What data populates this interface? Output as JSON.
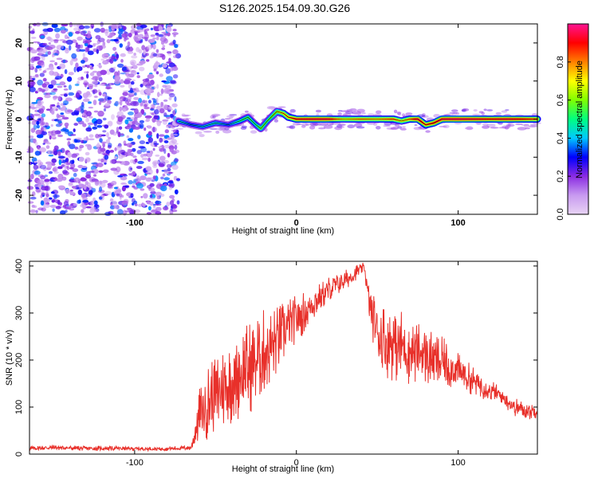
{
  "figure": {
    "title": "S126.2025.154.09.30.G26"
  },
  "chart_data": [
    {
      "type": "heatmap",
      "xlabel": "Height of straight line (km)",
      "ylabel": "Frequency (Hz)",
      "xlim": [
        -165,
        149
      ],
      "ylim": [
        -25,
        25
      ],
      "xticks": [
        -100,
        0,
        100
      ],
      "yticks": [
        -20,
        -10,
        0,
        10,
        20
      ],
      "noise_region": {
        "x_range": [
          -165,
          -73
        ],
        "description_level": "scattered low-to-moderate amplitude"
      },
      "ridge_start_x": -73,
      "ridge": {
        "x": [
          -73,
          -65,
          -58,
          -50,
          -42,
          -35,
          -30,
          -25,
          -22,
          -18,
          -12,
          -8,
          -5,
          0,
          10,
          20,
          30,
          40,
          50,
          60,
          65,
          70,
          75,
          80,
          85,
          90,
          100,
          110,
          120,
          130,
          140,
          149
        ],
        "y": [
          -0.5,
          -1.5,
          -2.0,
          -1.0,
          -1.5,
          -0.5,
          0.5,
          -1.5,
          -2.5,
          -0.5,
          2.0,
          1.5,
          0.5,
          0.0,
          0.0,
          0.0,
          0.0,
          0.0,
          0.0,
          0.0,
          -0.5,
          0.0,
          0.0,
          -1.5,
          -1.0,
          0.0,
          0.0,
          0.0,
          0.0,
          0.0,
          0.0,
          0.0
        ],
        "amp": [
          0.45,
          0.35,
          0.4,
          0.45,
          0.35,
          0.5,
          0.55,
          0.5,
          0.6,
          0.55,
          0.65,
          0.75,
          0.8,
          0.9,
          0.95,
          0.95,
          0.7,
          0.8,
          0.75,
          0.85,
          0.7,
          0.8,
          0.95,
          0.85,
          0.9,
          0.95,
          0.98,
          0.95,
          0.9,
          0.95,
          0.9,
          0.85
        ]
      },
      "colorbar": {
        "label": "Normalized spectral amplitude",
        "range": [
          0,
          1
        ],
        "ticks": [
          "0.0",
          "0.2",
          "0.4",
          "0.6",
          "0.8"
        ],
        "colors": [
          "#e8d4f4",
          "#c89af0",
          "#8a2be2",
          "#0000ff",
          "#00c8ff",
          "#00ff80",
          "#80ff00",
          "#ffff00",
          "#ff8000",
          "#ff0000",
          "#ff1493"
        ]
      }
    },
    {
      "type": "line",
      "xlabel": "Height of straight line (km)",
      "ylabel": "SNR (10 * v/v)",
      "xlim": [
        -165,
        149
      ],
      "ylim": [
        0,
        410
      ],
      "xticks": [
        -100,
        0,
        100
      ],
      "yticks": [
        0,
        100,
        200,
        300,
        400
      ],
      "color": "#e8302a",
      "series": [
        {
          "x": [
            -165,
            -150,
            -130,
            -110,
            -90,
            -75,
            -65,
            -60,
            -55,
            -50,
            -45,
            -40,
            -35,
            -30,
            -25,
            -20,
            -15,
            -10,
            -5,
            0,
            5,
            10,
            15,
            20,
            25,
            30,
            35,
            38,
            42,
            45,
            50,
            55,
            60,
            65,
            70,
            75,
            80,
            85,
            90,
            95,
            100,
            105,
            110,
            115,
            120,
            125,
            130,
            135,
            140,
            145,
            149
          ],
          "y": [
            12,
            14,
            12,
            12,
            11,
            12,
            14,
            80,
            110,
            130,
            140,
            150,
            170,
            180,
            200,
            220,
            230,
            250,
            270,
            290,
            300,
            320,
            335,
            350,
            360,
            370,
            380,
            390,
            398,
            320,
            260,
            240,
            235,
            230,
            220,
            215,
            210,
            200,
            195,
            185,
            175,
            165,
            155,
            145,
            135,
            125,
            115,
            100,
            95,
            90,
            95
          ],
          "spread": [
            5,
            6,
            5,
            5,
            4,
            5,
            6,
            60,
            80,
            90,
            90,
            90,
            100,
            100,
            100,
            90,
            80,
            70,
            60,
            50,
            45,
            40,
            30,
            28,
            25,
            22,
            18,
            15,
            10,
            40,
            70,
            80,
            80,
            80,
            75,
            70,
            65,
            60,
            55,
            50,
            40,
            35,
            30,
            28,
            25,
            22,
            20,
            20,
            18,
            18,
            18
          ]
        }
      ]
    }
  ]
}
